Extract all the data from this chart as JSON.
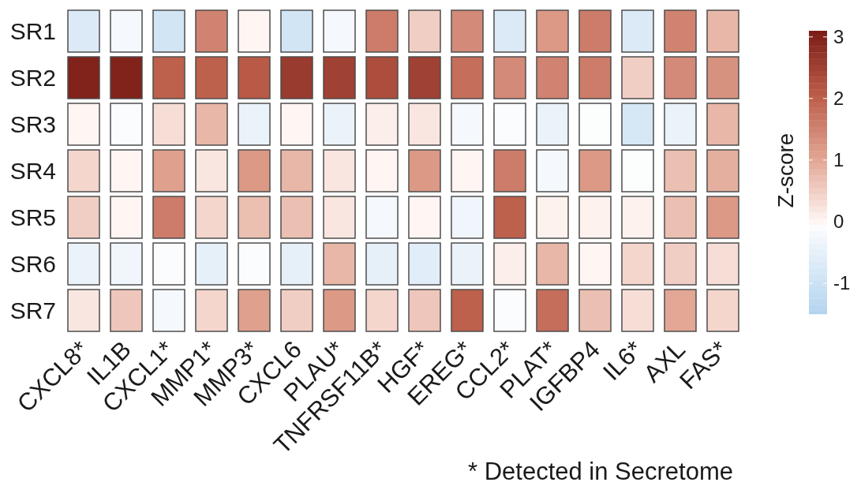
{
  "chart_data": {
    "type": "heatmap",
    "categories": [
      "CXCL8*",
      "IL1B",
      "CXCL1*",
      "MMP1*",
      "MMP3*",
      "CXCL6",
      "PLAU*",
      "TNFRSF11B*",
      "HGF*",
      "EREG*",
      "CCL2*",
      "PLAT*",
      "IGFBP4",
      "IL6*",
      "AXL",
      "FAS*"
    ],
    "y_categories": [
      "SR1",
      "SR2",
      "SR3",
      "SR4",
      "SR5",
      "SR6",
      "SR7"
    ],
    "cells": [
      [
        -0.7,
        -0.2,
        -0.9,
        1.5,
        0,
        -0.9,
        -0.2,
        1.6,
        0.5,
        1.4,
        -0.7,
        1.2,
        1.6,
        -0.7,
        1.5,
        0.8
      ],
      [
        3.0,
        3.0,
        2.0,
        2.0,
        2.1,
        2.6,
        2.5,
        2.3,
        2.5,
        1.8,
        1.4,
        1.5,
        1.6,
        0.5,
        1.4,
        1.3
      ],
      [
        0,
        -0.1,
        0.3,
        0.8,
        -0.4,
        0,
        -0.4,
        0.1,
        0.2,
        -0.2,
        -0.1,
        -0.4,
        -0.05,
        -0.8,
        -0.4,
        0.8
      ],
      [
        0.4,
        0,
        1.1,
        0.2,
        1.2,
        0.8,
        0.2,
        0,
        1.2,
        0,
        1.6,
        -0.2,
        1.2,
        -0.05,
        0.7,
        0.9
      ],
      [
        0.5,
        0,
        1.6,
        0.4,
        0.7,
        0.7,
        0.2,
        -0.2,
        0,
        -0.3,
        2.0,
        0.05,
        0.05,
        0.05,
        0.7,
        1.2
      ],
      [
        -0.4,
        -0.3,
        -0.1,
        -0.5,
        -0.1,
        -0.5,
        0.8,
        -0.5,
        -0.6,
        -0.4,
        0.1,
        0.8,
        0,
        0.4,
        0.5,
        0.3
      ],
      [
        0.2,
        0.6,
        -0.2,
        0.4,
        1.1,
        0.5,
        1.2,
        0.4,
        0.6,
        2.0,
        -0.1,
        1.8,
        0.7,
        0.3,
        1.0,
        0.4
      ]
    ],
    "clim": [
      -1.5,
      3.1
    ],
    "cticks": [
      -1,
      0,
      1,
      2,
      3
    ],
    "clabel": "Z-score",
    "annotations": [
      "* Detected in Secretome"
    ]
  }
}
